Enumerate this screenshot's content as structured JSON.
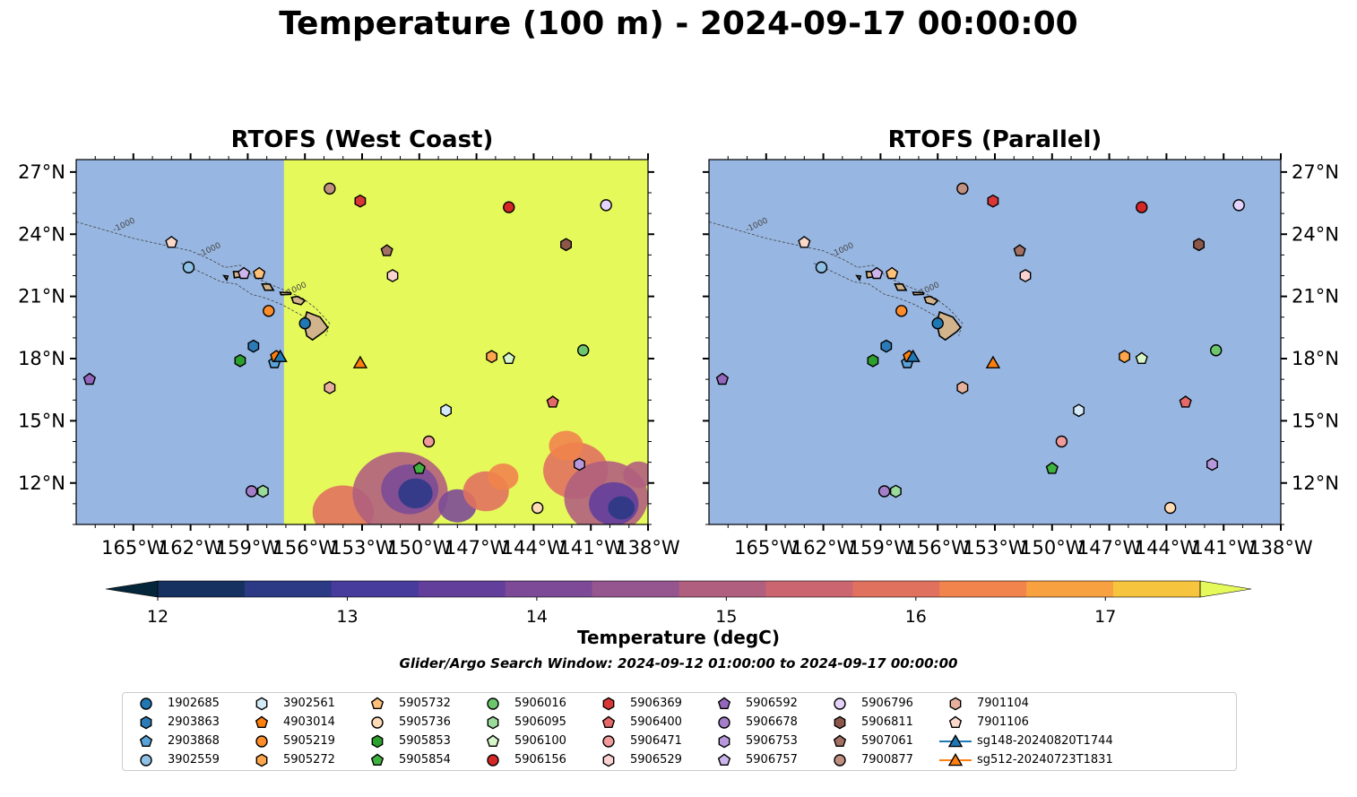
{
  "title": "Temperature (100 m) - 2024-09-17 00:00:00",
  "panels": [
    {
      "title": "RTOFS (West Coast)"
    },
    {
      "title": "RTOFS (Parallel)"
    }
  ],
  "map": {
    "lon_range": [
      -168,
      -138
    ],
    "lat_range": [
      10,
      27.6
    ],
    "lon_ticks": [
      "165°W",
      "162°W",
      "159°W",
      "156°W",
      "153°W",
      "150°W",
      "147°W",
      "144°W",
      "141°W",
      "138°W"
    ],
    "lon_tick_values": [
      -165,
      -162,
      -159,
      -156,
      -153,
      -150,
      -147,
      -144,
      -141,
      -138
    ],
    "lat_ticks": [
      "27°N",
      "24°N",
      "21°N",
      "18°N",
      "15°N",
      "12°N"
    ],
    "lat_tick_values": [
      27,
      24,
      21,
      18,
      15,
      12
    ],
    "ocean_color": "#97b6e1",
    "land_color": "#d2b48c",
    "warm_field_color": "#e5f95b",
    "west_coast_domain_west_edge_lon": -157.1,
    "contour_labels": [
      "-1000"
    ]
  },
  "colorbar": {
    "label": "Temperature (degC)",
    "min": 11.5,
    "max": 17.5,
    "step": 0.5,
    "tick_labels": [
      "12",
      "13",
      "14",
      "15",
      "16",
      "17"
    ],
    "tick_values": [
      12,
      13,
      14,
      15,
      16,
      17
    ],
    "colors": [
      "#05263a",
      "#16315f",
      "#2c3a86",
      "#473b9b",
      "#633f9c",
      "#7c4a97",
      "#955690",
      "#b05f7e",
      "#cb6670",
      "#e1715f",
      "#f1844c",
      "#f8a140",
      "#f6c43d",
      "#e5f95b"
    ]
  },
  "search_window": "Glider/Argo Search Window: 2024-09-12 01:00:00 to 2024-09-17 00:00:00",
  "legend": [
    {
      "id": "1902685",
      "marker": "circle",
      "color": "#1f77b4"
    },
    {
      "id": "2903863",
      "marker": "hexagon",
      "color": "#2c7bb6"
    },
    {
      "id": "2903868",
      "marker": "pentagon",
      "color": "#5aa2d8"
    },
    {
      "id": "3902559",
      "marker": "circle",
      "color": "#8fc1e7"
    },
    {
      "id": "3902561",
      "marker": "hexagon",
      "color": "#d4eaf9"
    },
    {
      "id": "4903014",
      "marker": "pentagon",
      "color": "#ff7f0e"
    },
    {
      "id": "5905219",
      "marker": "circle",
      "color": "#ff8c2a"
    },
    {
      "id": "5905272",
      "marker": "hexagon",
      "color": "#ffa64d"
    },
    {
      "id": "5905732",
      "marker": "pentagon",
      "color": "#ffc07a"
    },
    {
      "id": "5905736",
      "marker": "circle",
      "color": "#ffdcb5"
    },
    {
      "id": "5905853",
      "marker": "hexagon",
      "color": "#2ca02c"
    },
    {
      "id": "5905854",
      "marker": "pentagon",
      "color": "#3fb13f"
    },
    {
      "id": "5906016",
      "marker": "circle",
      "color": "#6cc66c"
    },
    {
      "id": "5906095",
      "marker": "hexagon",
      "color": "#9ada9a"
    },
    {
      "id": "5906100",
      "marker": "pentagon",
      "color": "#d6f5c8"
    },
    {
      "id": "5906156",
      "marker": "circle",
      "color": "#d62728"
    },
    {
      "id": "5906369",
      "marker": "hexagon",
      "color": "#d93636"
    },
    {
      "id": "5906400",
      "marker": "pentagon",
      "color": "#e66969"
    },
    {
      "id": "5906471",
      "marker": "circle",
      "color": "#f19a9a"
    },
    {
      "id": "5906529",
      "marker": "hexagon",
      "color": "#fbd2d2"
    },
    {
      "id": "5906592",
      "marker": "pentagon",
      "color": "#9467bd"
    },
    {
      "id": "5906678",
      "marker": "circle",
      "color": "#a57ec9"
    },
    {
      "id": "5906753",
      "marker": "hexagon",
      "color": "#b898dc"
    },
    {
      "id": "5906757",
      "marker": "pentagon",
      "color": "#cdb4ec"
    },
    {
      "id": "5906796",
      "marker": "circle",
      "color": "#e5d3fb"
    },
    {
      "id": "5906811",
      "marker": "hexagon",
      "color": "#8c564b"
    },
    {
      "id": "5907061",
      "marker": "pentagon",
      "color": "#a37063"
    },
    {
      "id": "7900877",
      "marker": "circle",
      "color": "#bf8f7f"
    },
    {
      "id": "7901104",
      "marker": "hexagon",
      "color": "#e7b09c"
    },
    {
      "id": "7901106",
      "marker": "pentagon",
      "color": "#fcd8cb"
    },
    {
      "id": "sg148-20240820T1744",
      "marker": "triangle",
      "color": "#1f77b4",
      "line": true
    },
    {
      "id": "sg512-20240723T1831",
      "marker": "triangle",
      "color": "#ff7f0e",
      "line": true
    }
  ],
  "observations": [
    {
      "id": "1902685",
      "lon": -156.0,
      "lat": 19.7
    },
    {
      "id": "2903863",
      "lon": -158.7,
      "lat": 18.6
    },
    {
      "id": "2903868",
      "lon": -157.6,
      "lat": 17.8
    },
    {
      "id": "3902559",
      "lon": -162.1,
      "lat": 22.4
    },
    {
      "id": "3902561",
      "lon": -148.6,
      "lat": 15.5
    },
    {
      "id": "4903014",
      "lon": -157.5,
      "lat": 18.1
    },
    {
      "id": "5905219",
      "lon": -157.9,
      "lat": 20.3
    },
    {
      "id": "5905272",
      "lon": -146.2,
      "lat": 18.1
    },
    {
      "id": "5905732",
      "lon": -158.4,
      "lat": 22.1
    },
    {
      "id": "5905736",
      "lon": -143.8,
      "lat": 10.8
    },
    {
      "id": "5905853",
      "lon": -159.4,
      "lat": 17.9
    },
    {
      "id": "5905854",
      "lon": -150.0,
      "lat": 12.7
    },
    {
      "id": "5906016",
      "lon": -141.4,
      "lat": 18.4
    },
    {
      "id": "5906095",
      "lon": -158.2,
      "lat": 11.6
    },
    {
      "id": "5906100",
      "lon": -145.3,
      "lat": 18.0
    },
    {
      "id": "5906156",
      "lon": -145.3,
      "lat": 25.3
    },
    {
      "id": "5906369",
      "lon": -153.1,
      "lat": 25.6
    },
    {
      "id": "5906400",
      "lon": -143.0,
      "lat": 15.9
    },
    {
      "id": "5906471",
      "lon": -149.5,
      "lat": 14.0
    },
    {
      "id": "5906529",
      "lon": -151.4,
      "lat": 22.0
    },
    {
      "id": "5906592",
      "lon": -167.3,
      "lat": 17.0
    },
    {
      "id": "5906678",
      "lon": -158.8,
      "lat": 11.6
    },
    {
      "id": "5906753",
      "lon": -141.6,
      "lat": 12.9
    },
    {
      "id": "5906757",
      "lon": -159.2,
      "lat": 22.1
    },
    {
      "id": "5906796",
      "lon": -140.2,
      "lat": 25.4
    },
    {
      "id": "5906811",
      "lon": -142.3,
      "lat": 23.5
    },
    {
      "id": "5907061",
      "lon": -151.7,
      "lat": 23.2
    },
    {
      "id": "7900877",
      "lon": -154.7,
      "lat": 26.2
    },
    {
      "id": "7901104",
      "lon": -154.7,
      "lat": 16.6
    },
    {
      "id": "7901106",
      "lon": -163.0,
      "lat": 23.6
    },
    {
      "id": "sg148-20240820T1744",
      "lon": -157.3,
      "lat": 18.1
    },
    {
      "id": "sg512-20240723T1831",
      "lon": -153.1,
      "lat": 17.8
    }
  ]
}
